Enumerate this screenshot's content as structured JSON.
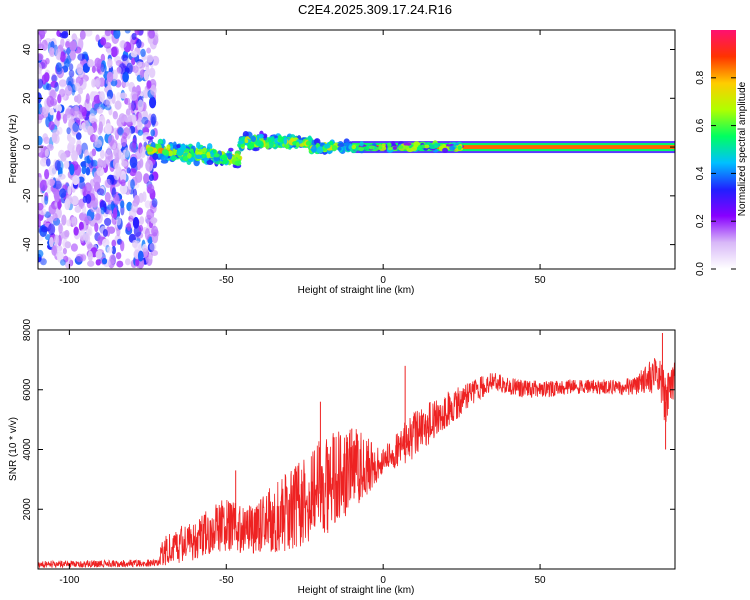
{
  "figure_title": "C2E4.2025.309.17.24.R16",
  "chart_data": [
    {
      "type": "heatmap",
      "name": "spectrogram",
      "xlabel": "Height of straight line (km)",
      "ylabel": "Frequency (Hz)",
      "xlim": [
        -110,
        93
      ],
      "ylim": [
        -50,
        48
      ],
      "xticks": [
        -100,
        -50,
        0,
        50
      ],
      "yticks": [
        -40,
        -20,
        0,
        20,
        40
      ],
      "colorbar": {
        "label": "Normalized spectral amplitude",
        "range": [
          0,
          1
        ],
        "ticks": [
          0.0,
          0.2,
          0.4,
          0.6,
          0.8
        ],
        "colors": [
          "#ffffff",
          "#d8b8f8",
          "#8800ff",
          "#2020ff",
          "#00c0ff",
          "#00ff60",
          "#b0ff00",
          "#ffcc00",
          "#ff3300",
          "#ff1070"
        ]
      },
      "regions": [
        {
          "name": "noise",
          "x": [
            -110,
            -72
          ],
          "freq_spread": 48,
          "amplitude": [
            0.05,
            0.25
          ]
        },
        {
          "name": "onset",
          "x": [
            -75,
            -10
          ],
          "freq_center": [
            0,
            -5,
            3
          ],
          "freq_spread": 6,
          "amplitude": [
            0.2,
            0.6
          ]
        },
        {
          "name": "carrier",
          "x": [
            -10,
            93
          ],
          "freq_center": 0,
          "freq_spread": 1.5,
          "amplitude": [
            0.6,
            1.0
          ]
        }
      ]
    },
    {
      "type": "line",
      "name": "snr",
      "xlabel": "Height of straight line (km)",
      "ylabel": "SNR (10 * v/v)",
      "xlim": [
        -110,
        93
      ],
      "ylim": [
        0,
        8000
      ],
      "xticks": [
        -100,
        -50,
        0,
        50
      ],
      "yticks": [
        2000,
        4000,
        6000,
        8000
      ],
      "color": "#ee2222",
      "envelope": {
        "x": [
          -110,
          -72,
          -70,
          -60,
          -50,
          -45,
          -40,
          -30,
          -20,
          -10,
          0,
          10,
          20,
          30,
          35,
          40,
          50,
          60,
          70,
          80,
          88,
          90,
          93
        ],
        "mean": [
          150,
          200,
          600,
          1000,
          1500,
          1300,
          1400,
          2000,
          2700,
          3300,
          3600,
          4500,
          5300,
          6000,
          6300,
          6100,
          6000,
          6100,
          6100,
          6100,
          6600,
          5600,
          6500
        ],
        "noise": [
          120,
          120,
          500,
          700,
          900,
          800,
          900,
          1400,
          1700,
          1500,
          450,
          800,
          600,
          400,
          300,
          300,
          300,
          250,
          250,
          300,
          700,
          900,
          600
        ]
      },
      "spikes": [
        {
          "x": -47,
          "y": 3300
        },
        {
          "x": -20,
          "y": 5600
        },
        {
          "x": -10,
          "y": 4700
        },
        {
          "x": 7,
          "y": 6800
        },
        {
          "x": 89,
          "y": 7900
        },
        {
          "x": 90,
          "y": 4000
        }
      ]
    }
  ]
}
